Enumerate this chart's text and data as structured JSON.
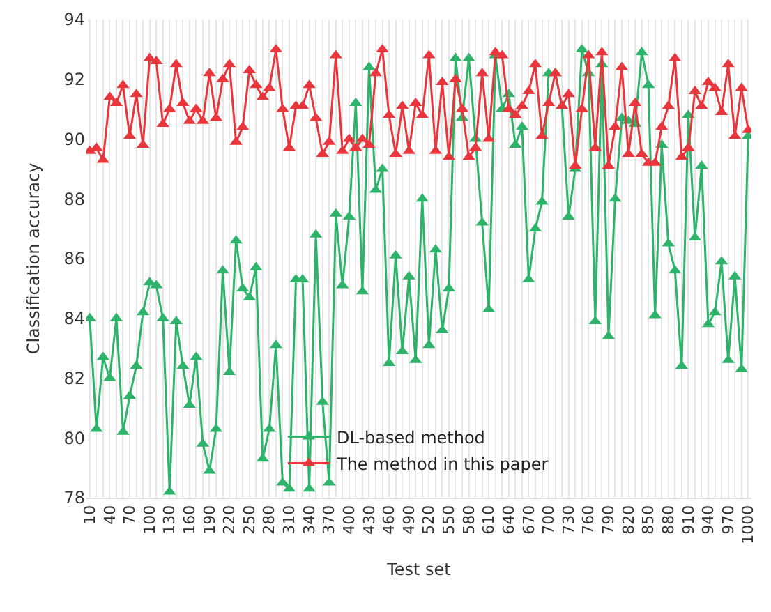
{
  "chart_data": {
    "type": "line",
    "xlabel": "Test set",
    "ylabel": "Classification accuracy",
    "x": [
      10,
      20,
      30,
      40,
      50,
      60,
      70,
      80,
      90,
      100,
      110,
      120,
      130,
      140,
      150,
      160,
      170,
      180,
      190,
      200,
      210,
      220,
      230,
      240,
      250,
      260,
      270,
      280,
      290,
      300,
      310,
      320,
      330,
      340,
      350,
      360,
      370,
      380,
      390,
      400,
      410,
      420,
      430,
      440,
      450,
      460,
      470,
      480,
      490,
      500,
      510,
      520,
      530,
      540,
      550,
      560,
      570,
      580,
      590,
      600,
      610,
      620,
      630,
      640,
      650,
      660,
      670,
      680,
      690,
      700,
      710,
      720,
      730,
      740,
      750,
      760,
      770,
      780,
      790,
      800,
      810,
      820,
      830,
      840,
      850,
      860,
      870,
      880,
      890,
      900,
      910,
      920,
      930,
      940,
      950,
      960,
      970,
      980,
      990,
      1000
    ],
    "series": [
      {
        "name": "DL-based method",
        "color": "#2eb36a",
        "values": [
          84.0,
          80.3,
          82.7,
          82.0,
          84.0,
          80.2,
          81.4,
          82.4,
          84.2,
          85.2,
          85.1,
          84.0,
          78.2,
          83.9,
          82.4,
          81.1,
          82.7,
          79.8,
          78.9,
          80.3,
          85.6,
          82.2,
          86.6,
          85.0,
          84.7,
          85.7,
          79.3,
          80.3,
          83.1,
          78.5,
          78.3,
          85.3,
          85.3,
          78.3,
          86.8,
          81.2,
          78.5,
          87.5,
          85.1,
          87.4,
          91.2,
          84.9,
          92.4,
          88.3,
          89.0,
          82.5,
          86.1,
          82.9,
          85.4,
          82.6,
          88.0,
          83.1,
          86.3,
          83.6,
          85.0,
          92.7,
          90.7,
          92.7,
          90.0,
          87.2,
          84.3,
          92.8,
          91.0,
          91.5,
          89.8,
          90.4,
          85.3,
          87.0,
          87.9,
          92.2,
          92.2,
          91.1,
          87.4,
          89.0,
          93.0,
          92.2,
          83.9,
          92.5,
          83.4,
          88.0,
          90.7,
          90.6,
          90.5,
          92.9,
          91.8,
          84.1,
          89.8,
          86.5,
          85.6,
          82.4,
          90.8,
          86.7,
          89.1,
          83.8,
          84.2,
          85.9,
          82.6,
          85.4,
          82.3,
          90.1
        ]
      },
      {
        "name": "The method in this paper",
        "color": "#e8363c",
        "values": [
          89.6,
          89.7,
          89.3,
          91.4,
          91.2,
          91.8,
          90.1,
          91.5,
          89.8,
          92.7,
          92.6,
          90.5,
          91.0,
          92.5,
          91.2,
          90.6,
          91.0,
          90.6,
          92.2,
          90.7,
          92.0,
          92.5,
          89.9,
          90.4,
          92.3,
          91.8,
          91.4,
          91.7,
          93.0,
          91.0,
          89.7,
          91.1,
          91.1,
          91.8,
          90.7,
          89.5,
          89.9,
          92.8,
          89.6,
          90.0,
          89.7,
          90.0,
          89.8,
          92.2,
          93.0,
          90.8,
          89.5,
          91.1,
          89.6,
          91.2,
          90.8,
          92.8,
          89.6,
          91.9,
          89.4,
          92.0,
          91.0,
          89.4,
          89.7,
          92.2,
          90.0,
          92.9,
          92.8,
          91.0,
          90.8,
          91.1,
          91.6,
          92.5,
          90.1,
          91.2,
          92.2,
          91.1,
          91.5,
          89.1,
          91.0,
          92.8,
          89.7,
          92.9,
          89.1,
          90.4,
          92.4,
          89.5,
          91.2,
          89.5,
          89.2,
          89.2,
          90.4,
          91.1,
          92.7,
          89.4,
          89.7,
          91.6,
          91.1,
          91.9,
          91.7,
          90.9,
          92.5,
          90.1,
          91.7,
          90.3
        ]
      }
    ],
    "xlim": [
      5,
      1005
    ],
    "xticks": [
      10,
      {
        "value": 20,
        "label": null
      },
      {
        "value": 30,
        "label": null
      },
      40,
      {
        "value": 50,
        "label": null
      },
      {
        "value": 60,
        "label": null
      },
      70,
      {
        "value": 80,
        "label": null
      },
      {
        "value": 90,
        "label": null
      },
      100,
      {
        "value": 110,
        "label": null
      },
      {
        "value": 120,
        "label": null
      },
      130,
      {
        "value": 140,
        "label": null
      },
      {
        "value": 150,
        "label": null
      },
      160,
      {
        "value": 170,
        "label": null
      },
      {
        "value": 180,
        "label": null
      },
      190,
      {
        "value": 200,
        "label": null
      },
      {
        "value": 210,
        "label": null
      },
      220,
      {
        "value": 230,
        "label": null
      },
      {
        "value": 240,
        "label": null
      },
      250,
      {
        "value": 260,
        "label": null
      },
      {
        "value": 270,
        "label": null
      },
      280,
      {
        "value": 290,
        "label": null
      },
      {
        "value": 300,
        "label": null
      },
      310,
      {
        "value": 320,
        "label": null
      },
      {
        "value": 330,
        "label": null
      },
      340,
      {
        "value": 350,
        "label": null
      },
      {
        "value": 360,
        "label": null
      },
      370,
      {
        "value": 380,
        "label": null
      },
      {
        "value": 390,
        "label": null
      },
      400,
      {
        "value": 410,
        "label": null
      },
      {
        "value": 420,
        "label": null
      },
      430,
      {
        "value": 440,
        "label": null
      },
      {
        "value": 450,
        "label": null
      },
      460,
      {
        "value": 470,
        "label": null
      },
      {
        "value": 480,
        "label": null
      },
      490,
      {
        "value": 500,
        "label": null
      },
      {
        "value": 510,
        "label": null
      },
      520,
      {
        "value": 530,
        "label": null
      },
      {
        "value": 540,
        "label": null
      },
      550,
      {
        "value": 560,
        "label": null
      },
      {
        "value": 570,
        "label": null
      },
      580,
      {
        "value": 590,
        "label": null
      },
      {
        "value": 600,
        "label": null
      },
      610,
      {
        "value": 620,
        "label": null
      },
      {
        "value": 630,
        "label": null
      },
      640,
      {
        "value": 650,
        "label": null
      },
      {
        "value": 660,
        "label": null
      },
      670,
      {
        "value": 680,
        "label": null
      },
      {
        "value": 690,
        "label": null
      },
      700,
      {
        "value": 710,
        "label": null
      },
      {
        "value": 720,
        "label": null
      },
      730,
      {
        "value": 740,
        "label": null
      },
      {
        "value": 750,
        "label": null
      },
      760,
      {
        "value": 770,
        "label": null
      },
      {
        "value": 780,
        "label": null
      },
      790,
      {
        "value": 800,
        "label": null
      },
      {
        "value": 810,
        "label": null
      },
      820,
      {
        "value": 830,
        "label": null
      },
      {
        "value": 840,
        "label": null
      },
      850,
      {
        "value": 860,
        "label": null
      },
      {
        "value": 870,
        "label": null
      },
      880,
      {
        "value": 890,
        "label": null
      },
      {
        "value": 900,
        "label": null
      },
      910,
      {
        "value": 920,
        "label": null
      },
      {
        "value": 930,
        "label": null
      },
      940,
      {
        "value": 950,
        "label": null
      },
      {
        "value": 960,
        "label": null
      },
      970,
      {
        "value": 980,
        "label": null
      },
      {
        "value": 990,
        "label": null
      },
      1000
    ],
    "ylim": [
      78,
      94
    ],
    "yticks": [
      78,
      80,
      82,
      84,
      86,
      88,
      90,
      92,
      94
    ],
    "grid": "x",
    "legend": "bottom",
    "marker": "triangle",
    "line_style": "solid"
  }
}
